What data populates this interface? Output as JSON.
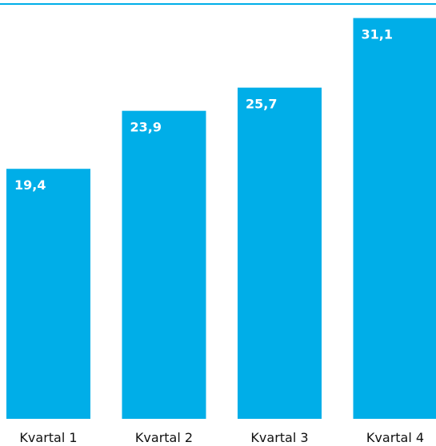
{
  "chart_data": {
    "type": "bar",
    "categories": [
      "Kvartal 1",
      "Kvartal 2",
      "Kvartal 3",
      "Kvartal 4"
    ],
    "values": [
      19.4,
      23.9,
      25.7,
      31.1
    ],
    "value_labels": [
      "19,4",
      "23,9",
      "25,7",
      "31,1"
    ],
    "title": "",
    "xlabel": "",
    "ylabel": "",
    "ylim": [
      0,
      32.5
    ],
    "grid": false,
    "legend": "none",
    "data_labels": "inside-top",
    "colors": {
      "bar": "#00aee8",
      "top_rule": "#00aee8",
      "label_text": "#ffffff",
      "tick_text": "#111111"
    }
  }
}
